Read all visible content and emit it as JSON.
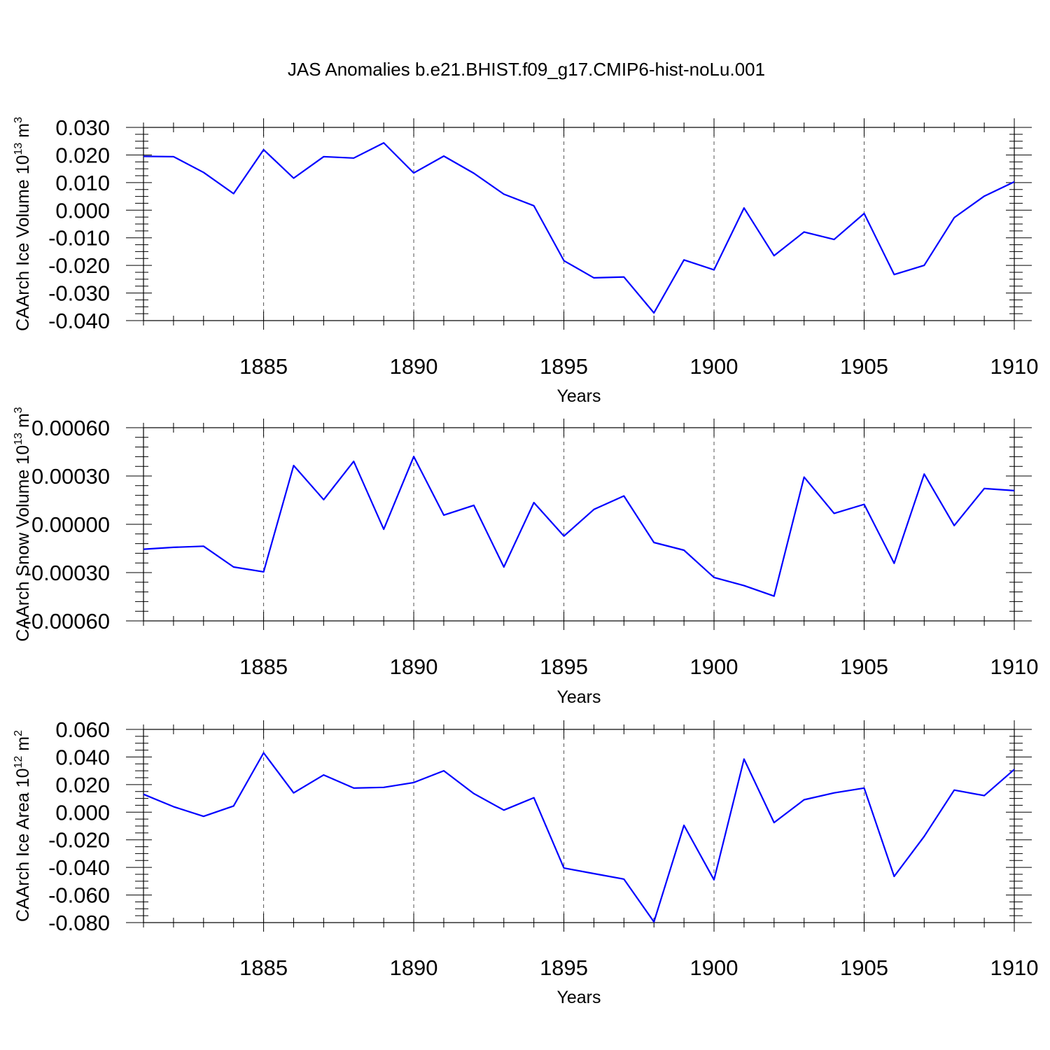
{
  "title": "JAS Anomalies b.e21.BHIST.f09_g17.CMIP6-hist-noLu.001",
  "colors": {
    "series": "#0000ff",
    "axis": "#000000",
    "grid": "#555555",
    "background": "#ffffff"
  },
  "chart_data": [
    {
      "type": "line",
      "ylabel": {
        "text": "CAArch Ice Volume 10",
        "exp": "13",
        "unit": " m",
        "unit_exp": "3"
      },
      "xlabel": "Years",
      "xlim": [
        1881,
        1910
      ],
      "ylim": [
        -0.04,
        0.03
      ],
      "x_ticks": [
        1885,
        1890,
        1895,
        1900,
        1905,
        1910
      ],
      "x_tick_labels": [
        "1885",
        "1890",
        "1895",
        "1900",
        "1905",
        "1910"
      ],
      "y_ticks": [
        0.03,
        0.02,
        0.01,
        0.0,
        -0.01,
        -0.02,
        -0.03,
        -0.04
      ],
      "y_tick_labels": [
        "0.030",
        "0.020",
        "0.010",
        "0.000",
        "-0.010",
        "-0.020",
        "-0.030",
        "-0.040"
      ],
      "grid": "vertical dashed at major x ticks",
      "x": [
        1881,
        1882,
        1883,
        1884,
        1885,
        1886,
        1887,
        1888,
        1889,
        1890,
        1891,
        1892,
        1893,
        1894,
        1895,
        1896,
        1897,
        1898,
        1899,
        1900,
        1901,
        1902,
        1903,
        1904,
        1905,
        1906,
        1907,
        1908,
        1909,
        1910
      ],
      "values": [
        0.0195,
        0.0194,
        0.0137,
        0.006,
        0.0219,
        0.0116,
        0.0194,
        0.0189,
        0.0244,
        0.0135,
        0.0196,
        0.0134,
        0.0058,
        0.0016,
        -0.0183,
        -0.0245,
        -0.0242,
        -0.0372,
        -0.018,
        -0.0216,
        0.0008,
        -0.0165,
        -0.0079,
        -0.0106,
        -0.0012,
        -0.0233,
        -0.02,
        -0.0027,
        0.0051,
        0.0103
      ]
    },
    {
      "type": "line",
      "ylabel": {
        "text": "CAArch Snow Volume 10",
        "exp": "13",
        "unit": " m",
        "unit_exp": "3"
      },
      "xlabel": "Years",
      "xlim": [
        1881,
        1910
      ],
      "ylim": [
        -0.0006,
        0.0006
      ],
      "x_ticks": [
        1885,
        1890,
        1895,
        1900,
        1905,
        1910
      ],
      "x_tick_labels": [
        "1885",
        "1890",
        "1895",
        "1900",
        "1905",
        "1910"
      ],
      "y_ticks": [
        0.0006,
        0.0003,
        0.0,
        -0.0003,
        -0.0006
      ],
      "y_tick_labels": [
        "0.00060",
        "0.00030",
        "0.00000",
        "-0.00030",
        "-0.00060"
      ],
      "grid": "vertical dashed at major x ticks",
      "x": [
        1881,
        1882,
        1883,
        1884,
        1885,
        1886,
        1887,
        1888,
        1889,
        1890,
        1891,
        1892,
        1893,
        1894,
        1895,
        1896,
        1897,
        1898,
        1899,
        1900,
        1901,
        1902,
        1903,
        1904,
        1905,
        1906,
        1907,
        1908,
        1909,
        1910
      ],
      "values": [
        -0.000155,
        -0.000143,
        -0.000136,
        -0.000265,
        -0.000295,
        0.000365,
        0.000153,
        0.000391,
        -3.1e-05,
        0.000421,
        5.7e-05,
        0.000118,
        -0.000265,
        0.000135,
        -7.3e-05,
        9.2e-05,
        0.000176,
        -0.000113,
        -0.000161,
        -0.00033,
        -0.000381,
        -0.000446,
        0.000293,
        6.8e-05,
        0.000124,
        -0.000242,
        0.000312,
        -8e-06,
        0.000222,
        0.000209
      ]
    },
    {
      "type": "line",
      "ylabel": {
        "text": "CAArch Ice Area 10",
        "exp": "12",
        "unit": " m",
        "unit_exp": "2"
      },
      "xlabel": "Years",
      "xlim": [
        1881,
        1910
      ],
      "ylim": [
        -0.08,
        0.06
      ],
      "x_ticks": [
        1885,
        1890,
        1895,
        1900,
        1905,
        1910
      ],
      "x_tick_labels": [
        "1885",
        "1890",
        "1895",
        "1900",
        "1905",
        "1910"
      ],
      "y_ticks": [
        0.06,
        0.04,
        0.02,
        0.0,
        -0.02,
        -0.04,
        -0.06,
        -0.08
      ],
      "y_tick_labels": [
        "0.060",
        "0.040",
        "0.020",
        "0.000",
        "-0.020",
        "-0.040",
        "-0.060",
        "-0.080"
      ],
      "grid": "vertical dashed at major x ticks",
      "x": [
        1881,
        1882,
        1883,
        1884,
        1885,
        1886,
        1887,
        1888,
        1889,
        1890,
        1891,
        1892,
        1893,
        1894,
        1895,
        1896,
        1897,
        1898,
        1899,
        1900,
        1901,
        1902,
        1903,
        1904,
        1905,
        1906,
        1907,
        1908,
        1909,
        1910
      ],
      "values": [
        0.013,
        0.004,
        -0.003,
        0.0045,
        0.043,
        0.014,
        0.027,
        0.0175,
        0.018,
        0.0215,
        0.03,
        0.0135,
        0.0015,
        0.0105,
        -0.0405,
        -0.0445,
        -0.0485,
        -0.0795,
        -0.0095,
        -0.049,
        0.0385,
        -0.0075,
        0.009,
        0.014,
        0.0175,
        -0.0465,
        -0.0175,
        0.016,
        0.012,
        0.031
      ]
    }
  ]
}
